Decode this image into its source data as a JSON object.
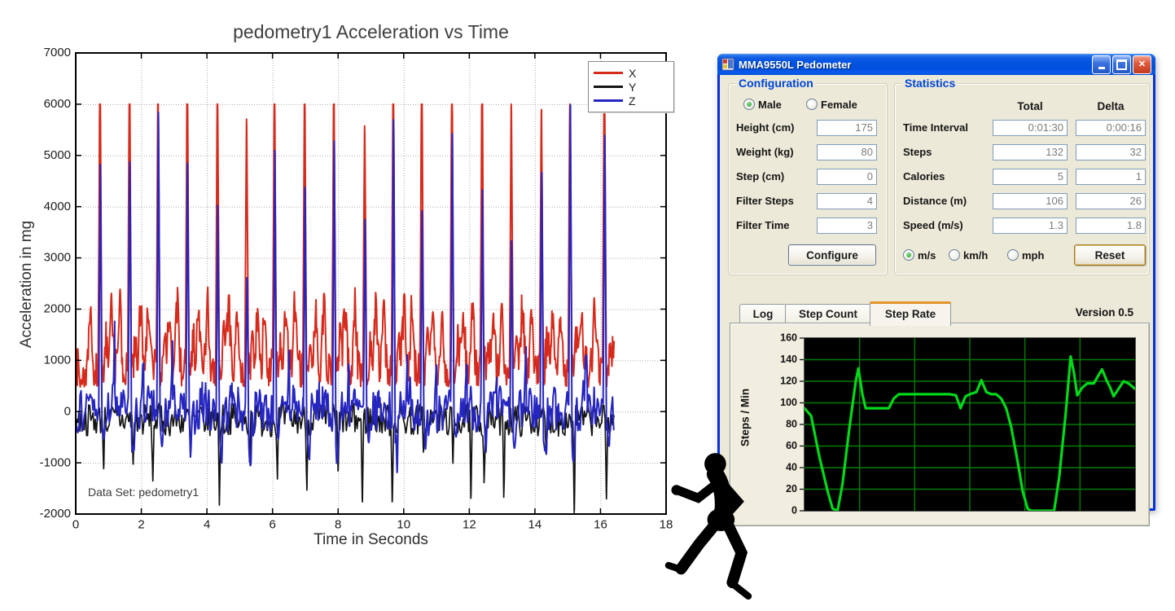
{
  "chart_data": [
    {
      "type": "line",
      "title": "pedometry1 Acceleration vs Time",
      "xlabel": "Time in Seconds",
      "ylabel": "Acceleration in mg",
      "annotation": "Data Set: pedometry1",
      "xlim": [
        0,
        18
      ],
      "ylim": [
        -2000,
        7000
      ],
      "x_ticks": [
        0,
        2,
        4,
        6,
        8,
        10,
        12,
        14,
        16,
        18
      ],
      "y_ticks": [
        -2000,
        -1000,
        0,
        1000,
        2000,
        3000,
        4000,
        5000,
        6000,
        7000
      ],
      "grid": true,
      "legend_position": "top-right",
      "legend": [
        {
          "label": "X",
          "color": "#d62a1c"
        },
        {
          "label": "Y",
          "color": "#141414"
        },
        {
          "label": "Z",
          "color": "#2525c0"
        }
      ],
      "t_end": 16.42,
      "step_period": 0.91,
      "steps": [
        {
          "t": 0.74,
          "x_peak": 6450,
          "z_peak": 5250
        },
        {
          "t": 1.64,
          "x_peak": 6600,
          "z_peak": 5050
        },
        {
          "t": 2.51,
          "x_peak": 6200,
          "z_peak": 5900
        },
        {
          "t": 3.4,
          "x_peak": 6500,
          "z_peak": 4800
        },
        {
          "t": 4.32,
          "x_peak": 6450,
          "z_peak": 4300
        },
        {
          "t": 5.21,
          "x_peak": 5400,
          "z_peak": 2950
        },
        {
          "t": 6.06,
          "x_peak": 6500,
          "z_peak": 5300
        },
        {
          "t": 6.98,
          "x_peak": 6400,
          "z_peak": 4600
        },
        {
          "t": 7.87,
          "x_peak": 6350,
          "z_peak": 5300
        },
        {
          "t": 8.81,
          "x_peak": 5250,
          "z_peak": 3700
        },
        {
          "t": 9.68,
          "x_peak": 6500,
          "z_peak": 5900
        },
        {
          "t": 10.55,
          "x_peak": 6450,
          "z_peak": 4250
        },
        {
          "t": 11.47,
          "x_peak": 6350,
          "z_peak": 5350
        },
        {
          "t": 12.39,
          "x_peak": 6600,
          "z_peak": 4100
        },
        {
          "t": 13.28,
          "x_peak": 5600,
          "z_peak": 3150
        },
        {
          "t": 14.2,
          "x_peak": 5500,
          "z_peak": 5000
        },
        {
          "t": 15.07,
          "x_peak": 5800,
          "z_peak": 6300
        },
        {
          "t": 16.12,
          "x_peak": 6450,
          "z_peak": 5800
        }
      ],
      "y_dips": [
        [
          0.85,
          -800
        ],
        [
          1.75,
          -1000
        ],
        [
          2.35,
          -1500
        ],
        [
          3.5,
          -900
        ],
        [
          4.38,
          -1750
        ],
        [
          5.3,
          -800
        ],
        [
          6.15,
          -1300
        ],
        [
          7.05,
          -1400
        ],
        [
          8.0,
          -1300
        ],
        [
          8.74,
          -1950
        ],
        [
          9.65,
          -1800
        ],
        [
          10.6,
          -900
        ],
        [
          11.5,
          -1250
        ],
        [
          12.05,
          -2000
        ],
        [
          12.45,
          -1400
        ],
        [
          13.05,
          -1600
        ],
        [
          14.35,
          -1000
        ],
        [
          15.2,
          -1900
        ],
        [
          16.18,
          -1850
        ]
      ],
      "baselines": {
        "x_base": 480,
        "x_noise": 780,
        "z_noise": 430,
        "y_base": -160,
        "y_noise": 330,
        "noise_grid": 0.033,
        "seed": 7
      }
    },
    {
      "type": "line",
      "ylabel": "Steps / Min",
      "ylim": [
        0,
        160
      ],
      "y_ticks": [
        0,
        20,
        40,
        60,
        80,
        100,
        120,
        140,
        160
      ],
      "x_divisions": 6,
      "grid": true,
      "bg_color": "#000000",
      "grid_color": "#00select7400",
      "gridline_color": "#007d00",
      "line_color": "#00d91a",
      "points": [
        [
          0.0,
          95
        ],
        [
          0.02,
          88
        ],
        [
          0.045,
          50
        ],
        [
          0.07,
          18
        ],
        [
          0.085,
          2
        ],
        [
          0.1,
          0
        ],
        [
          0.115,
          25
        ],
        [
          0.135,
          75
        ],
        [
          0.155,
          120
        ],
        [
          0.163,
          132
        ],
        [
          0.175,
          108
        ],
        [
          0.185,
          95
        ],
        [
          0.255,
          95
        ],
        [
          0.27,
          104
        ],
        [
          0.285,
          108
        ],
        [
          0.44,
          108
        ],
        [
          0.458,
          107
        ],
        [
          0.472,
          95
        ],
        [
          0.487,
          106
        ],
        [
          0.5,
          108
        ],
        [
          0.52,
          110
        ],
        [
          0.535,
          121
        ],
        [
          0.55,
          110
        ],
        [
          0.565,
          108
        ],
        [
          0.58,
          108
        ],
        [
          0.595,
          104
        ],
        [
          0.61,
          95
        ],
        [
          0.625,
          78
        ],
        [
          0.645,
          45
        ],
        [
          0.66,
          18
        ],
        [
          0.675,
          2
        ],
        [
          0.685,
          0
        ],
        [
          0.755,
          0
        ],
        [
          0.77,
          30
        ],
        [
          0.79,
          90
        ],
        [
          0.805,
          143
        ],
        [
          0.815,
          128
        ],
        [
          0.825,
          107
        ],
        [
          0.84,
          114
        ],
        [
          0.855,
          118
        ],
        [
          0.875,
          118
        ],
        [
          0.89,
          126
        ],
        [
          0.9,
          131
        ],
        [
          0.915,
          120
        ],
        [
          0.925,
          114
        ],
        [
          0.935,
          106
        ],
        [
          0.95,
          113
        ],
        [
          0.965,
          120
        ],
        [
          0.98,
          118
        ],
        [
          1.0,
          113
        ]
      ]
    }
  ],
  "window": {
    "title": "MMA9550L Pedometer",
    "titlebar_icons": [
      "app-icon",
      "minimize-icon",
      "maximize-icon",
      "close-icon"
    ],
    "configuration": {
      "caption": "Configuration",
      "gender_options": [
        {
          "label": "Male",
          "selected": true
        },
        {
          "label": "Female",
          "selected": false
        }
      ],
      "fields": [
        {
          "label": "Height (cm)",
          "value": "175"
        },
        {
          "label": "Weight (kg)",
          "value": "80"
        },
        {
          "label": "Step (cm)",
          "value": "0"
        },
        {
          "label": "Filter Steps",
          "value": "4"
        },
        {
          "label": "Filter Time",
          "value": "3"
        }
      ],
      "configure_label": "Configure"
    },
    "statistics": {
      "caption": "Statistics",
      "col_total": "Total",
      "col_delta": "Delta",
      "rows": [
        {
          "label": "Time Interval",
          "total": "0:01:30",
          "delta": "0:00:16"
        },
        {
          "label": "Steps",
          "total": "132",
          "delta": "32"
        },
        {
          "label": "Calories",
          "total": "5",
          "delta": "1"
        },
        {
          "label": "Distance (m)",
          "total": "106",
          "delta": "26"
        },
        {
          "label": "Speed (m/s)",
          "total": "1.3",
          "delta": "1.8"
        }
      ],
      "unit_options": [
        {
          "label": "m/s",
          "selected": true
        },
        {
          "label": "km/h",
          "selected": false
        },
        {
          "label": "mph",
          "selected": false
        }
      ],
      "reset_label": "Reset"
    },
    "tabs": [
      {
        "label": "Log",
        "active": false
      },
      {
        "label": "Step Count",
        "active": false
      },
      {
        "label": "Step Rate",
        "active": true
      }
    ],
    "version": "Version 0.5"
  }
}
